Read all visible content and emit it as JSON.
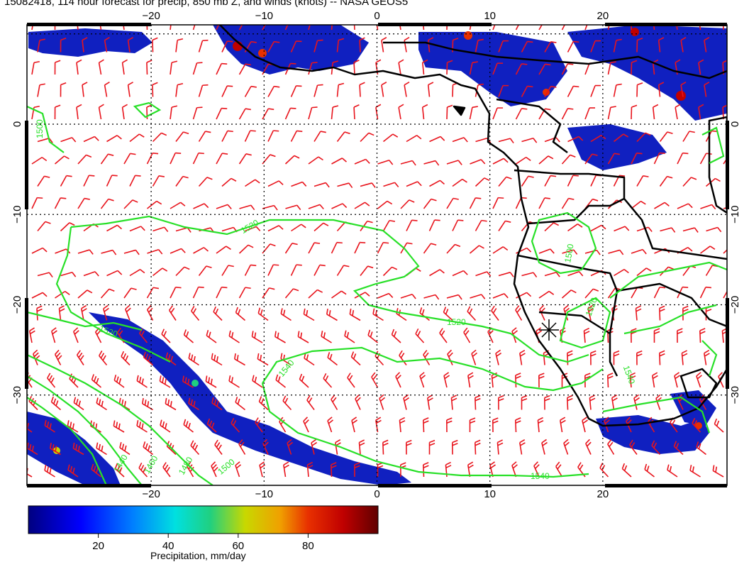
{
  "title": "15082418, 114 hour forecast for precip, 850 mb Z, and winds (knots) -- NASA GEOS5",
  "map": {
    "lon_range": [
      -31,
      31
    ],
    "lat_range": [
      -40,
      11
    ],
    "lon_ticks": [
      -20,
      -10,
      0,
      10,
      20
    ],
    "lat_ticks": [
      0,
      -10,
      -20,
      -30
    ],
    "lon_tick_labels": [
      "−20",
      "−10",
      "0",
      "10",
      "20"
    ],
    "lat_tick_labels": [
      "0",
      "−10",
      "−20",
      "−30"
    ],
    "grid": true,
    "colors": {
      "wind": "#e8141c",
      "contour": "#28e028",
      "coast": "#000000"
    },
    "contour_labels": [
      "1500",
      "1520",
      "1520",
      "1520",
      "1540",
      "1540",
      "1520",
      "1500",
      "1540",
      "1440",
      "1460",
      "1480",
      "1500"
    ]
  },
  "colorbar": {
    "label": "Precipitation, mm/day",
    "range": [
      0,
      100
    ],
    "ticks": [
      20,
      40,
      60,
      80
    ],
    "tick_labels": [
      "20",
      "40",
      "60",
      "80"
    ],
    "colors": [
      "#000080",
      "#0000ff",
      "#0080ff",
      "#00e0e0",
      "#20d080",
      "#c8d800",
      "#f0a000",
      "#e83000",
      "#c00000",
      "#600000"
    ]
  }
}
